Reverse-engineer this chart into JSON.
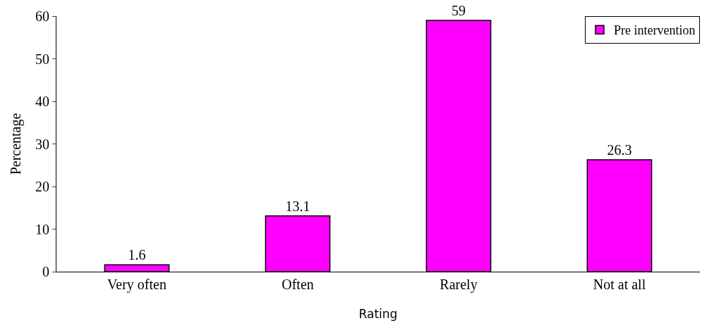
{
  "chart_data": {
    "type": "bar",
    "xlabel": "Rating",
    "ylabel": "Percentage",
    "categories": [
      "Very often",
      "Often",
      "Rarely",
      "Not at all"
    ],
    "series": [
      {
        "name": "Pre intervention",
        "color": "#ff00ff",
        "values": [
          1.6,
          13.1,
          59,
          26.3
        ]
      }
    ],
    "ylim": [
      0,
      60
    ],
    "yticks": [
      0,
      10,
      20,
      30,
      40,
      50,
      60
    ],
    "grid": false,
    "legend": "top right",
    "data_labels": true
  }
}
